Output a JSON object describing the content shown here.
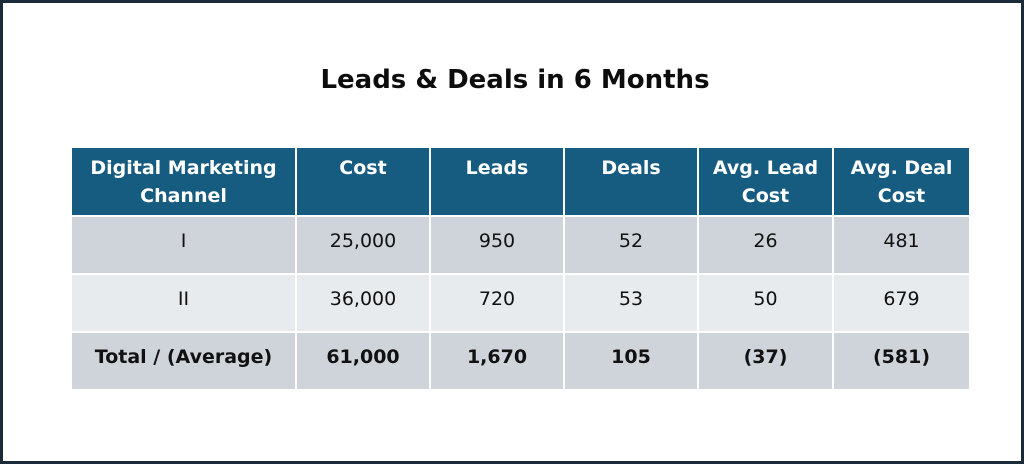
{
  "chart_data": {
    "type": "table",
    "title": "Leads & Deals in 6 Months",
    "columns": [
      "Digital Marketing Channel",
      "Cost",
      "Leads",
      "Deals",
      "Avg. Lead Cost",
      "Avg. Deal Cost"
    ],
    "rows": [
      [
        "I",
        "25,000",
        "950",
        "52",
        "26",
        "481"
      ],
      [
        "II",
        "36,000",
        "720",
        "53",
        "50",
        "679"
      ],
      [
        "Total / (Average)",
        "61,000",
        "1,670",
        "105",
        "(37)",
        "(581)"
      ]
    ],
    "header_color": "#165b80",
    "row_colors": [
      "#cfd4da",
      "#e8ebee",
      "#cfd4da"
    ]
  }
}
